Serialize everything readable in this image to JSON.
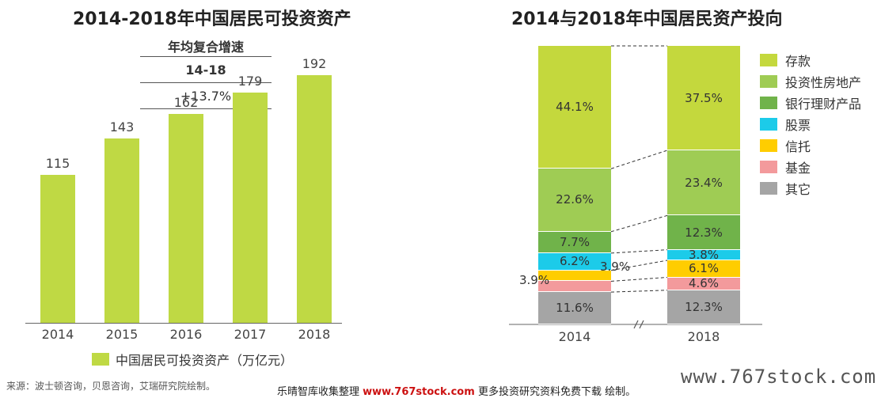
{
  "chart_data": [
    {
      "type": "bar",
      "title": "2014-2018年中国居民可投资资产",
      "categories": [
        "2014",
        "2015",
        "2016",
        "2017",
        "2018"
      ],
      "series": [
        {
          "name": "中国居民可投资资产（万亿元）",
          "values": [
            115,
            143,
            162,
            179,
            192
          ]
        }
      ],
      "ylim": [
        0,
        215
      ],
      "annotation": {
        "label": "年均复合增速",
        "period": "14-18",
        "value": "+13.7%"
      }
    },
    {
      "type": "bar",
      "stacked": true,
      "percent": true,
      "title": "2014与2018年中国居民资产投向",
      "categories": [
        "2014",
        "2018"
      ],
      "series": [
        {
          "name": "存款",
          "color": "#c4d83d",
          "values": [
            44.1,
            37.5
          ],
          "labels": [
            "44.1%",
            "37.5%"
          ]
        },
        {
          "name": "投资性房地产",
          "color": "#9fcc54",
          "values": [
            22.6,
            23.4
          ],
          "labels": [
            "22.6%",
            "23.4%"
          ]
        },
        {
          "name": "银行理财产品",
          "color": "#70b34a",
          "values": [
            7.7,
            12.3
          ],
          "labels": [
            "7.7%",
            "12.3%"
          ]
        },
        {
          "name": "股票",
          "color": "#1ccbe9",
          "values": [
            6.2,
            3.8
          ],
          "labels": [
            "6.2%",
            "3.8%"
          ]
        },
        {
          "name": "信托",
          "color": "#ffcd00",
          "values": [
            3.9,
            6.1
          ],
          "labels": [
            "3.9%",
            "6.1%"
          ]
        },
        {
          "name": "基金",
          "color": "#f39a9c",
          "values": [
            3.9,
            4.6
          ],
          "labels": [
            "3.9%",
            "4.6%"
          ]
        },
        {
          "name": "其它",
          "color": "#a5a5a5",
          "values": [
            11.6,
            12.3
          ],
          "labels": [
            "11.6%",
            "12.3%"
          ]
        }
      ],
      "legend_position": "right",
      "axis_break": "//"
    }
  ],
  "footer": {
    "source": "来源：波士顿咨询，贝恩咨询，艾瑞研究院绘制。",
    "watermark_left": "乐晴智库收集整理",
    "watermark_url": "www.767stock.com",
    "watermark_right": "更多投资研究资料免费下载",
    "watermark_tail": "绘制。",
    "brand": "www.767stock.com"
  }
}
